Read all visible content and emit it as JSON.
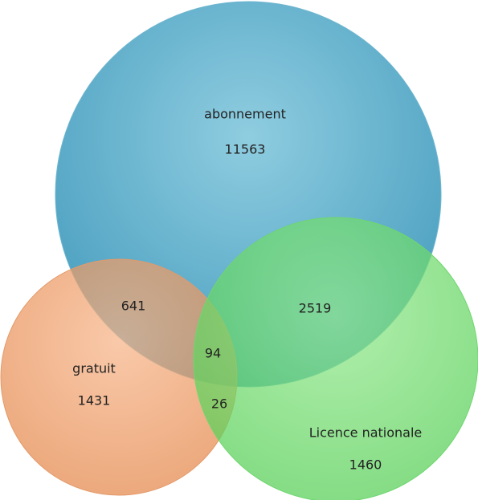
{
  "sets": [
    {
      "label": "abonnement",
      "count": "11563"
    },
    {
      "label": "gratuit",
      "count": "1431"
    },
    {
      "label": "Licence nationale",
      "count": "1460"
    }
  ],
  "overlaps": {
    "abonnement_gratuit": "641",
    "abonnement_licence": "2519",
    "all": "94",
    "gratuit_licence": "26"
  }
}
